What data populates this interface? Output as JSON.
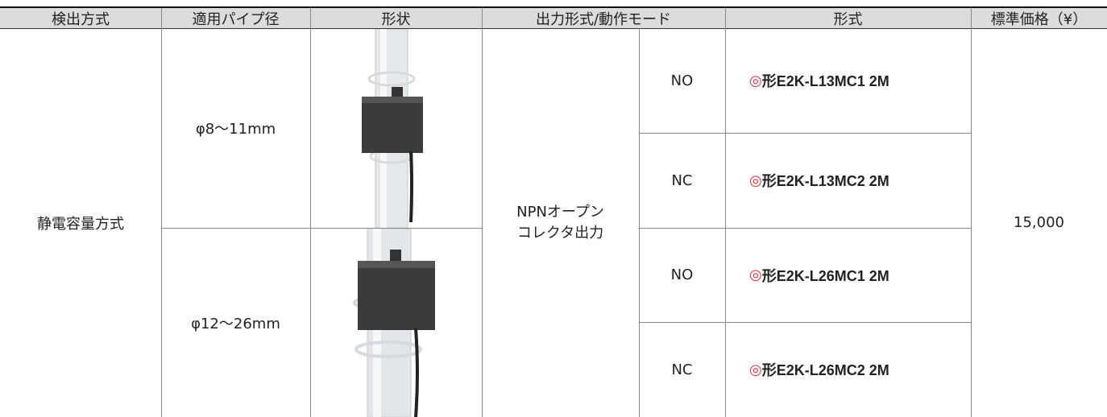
{
  "table": {
    "headers": [
      "検出方式",
      "適用パイプ径",
      "形状",
      "出力形式/動作モード",
      "形式",
      "標準価格（¥）"
    ],
    "method": "静電容量方式",
    "output": [
      "NPNオープン",
      "コレクタ出力"
    ],
    "price": "15,000",
    "pipes": [
      {
        "diameter": "φ8〜11mm",
        "variants": [
          {
            "mode": "NO",
            "mark": "◎",
            "model": "形E2K-L13MC1 2M"
          },
          {
            "mode": "NC",
            "mark": "◎",
            "model": "形E2K-L13MC2 2M"
          }
        ]
      },
      {
        "diameter": "φ12〜26mm",
        "variants": [
          {
            "mode": "NO",
            "mark": "◎",
            "model": "形E2K-L26MC1 2M"
          },
          {
            "mode": "NC",
            "mark": "◎",
            "model": "形E2K-L26MC2 2M"
          }
        ]
      }
    ]
  }
}
